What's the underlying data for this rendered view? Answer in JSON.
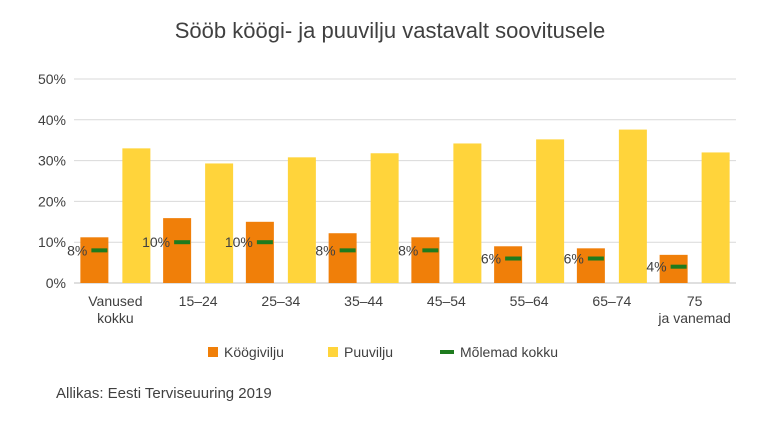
{
  "chart_data": {
    "type": "bar",
    "title": "Sööb köögi- ja puuvilju vastavalt soovitusele",
    "categories": [
      "Vanused kokku",
      "15–24",
      "25–34",
      "35–44",
      "45–54",
      "55–64",
      "65–74",
      "75 ja vanemad"
    ],
    "series": [
      {
        "name": "Köögivilju",
        "kind": "bar",
        "color": "#F07F09",
        "values": [
          11.2,
          15.9,
          15.0,
          12.2,
          11.2,
          9.0,
          8.5,
          6.9
        ]
      },
      {
        "name": "Puuvilju",
        "kind": "bar",
        "color": "#FFD43B",
        "values": [
          33.0,
          29.3,
          30.8,
          31.8,
          34.2,
          35.2,
          37.6,
          32.0
        ]
      },
      {
        "name": "Mõlemad kokku",
        "kind": "marker",
        "color": "#1E7B1E",
        "values": [
          8,
          10,
          10,
          8,
          8,
          6,
          6,
          4
        ],
        "labels": [
          "8%",
          "10%",
          "10%",
          "8%",
          "8%",
          "6%",
          "6%",
          "4%"
        ]
      }
    ],
    "y_ticks": [
      "0%",
      "10%",
      "20%",
      "30%",
      "40%",
      "50%"
    ],
    "ylim": [
      0,
      50
    ],
    "grid": true,
    "legend_position": "bottom",
    "xlabel": "",
    "ylabel": ""
  },
  "source": "Allikas: Eesti Terviseuuring 2019"
}
